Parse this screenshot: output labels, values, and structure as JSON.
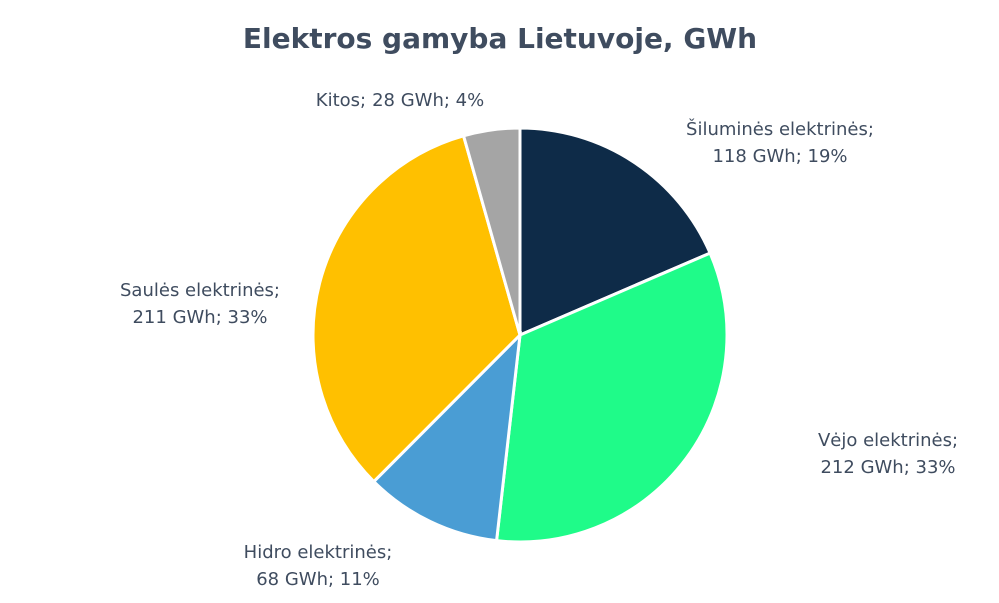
{
  "chart_data": {
    "type": "pie",
    "title": "Elektros gamyba Lietuvoje, GWh",
    "categories": [
      "Šiluminės elektrinės;",
      "Vėjo elektrinės;",
      "Hidro elektrinės;",
      "Saulės elektrinės;",
      "Kitos;"
    ],
    "values": [
      118,
      212,
      68,
      211,
      28
    ],
    "value_labels": [
      "118 GWh; 19%",
      "212 GWh; 33%",
      "68 GWh; 11%",
      "211 GWh; 33%",
      "28 GWh; 4%"
    ],
    "colors": [
      "#0e2b48",
      "#1ffb89",
      "#4a9dd4",
      "#ffc000",
      "#a5a5a5"
    ]
  }
}
